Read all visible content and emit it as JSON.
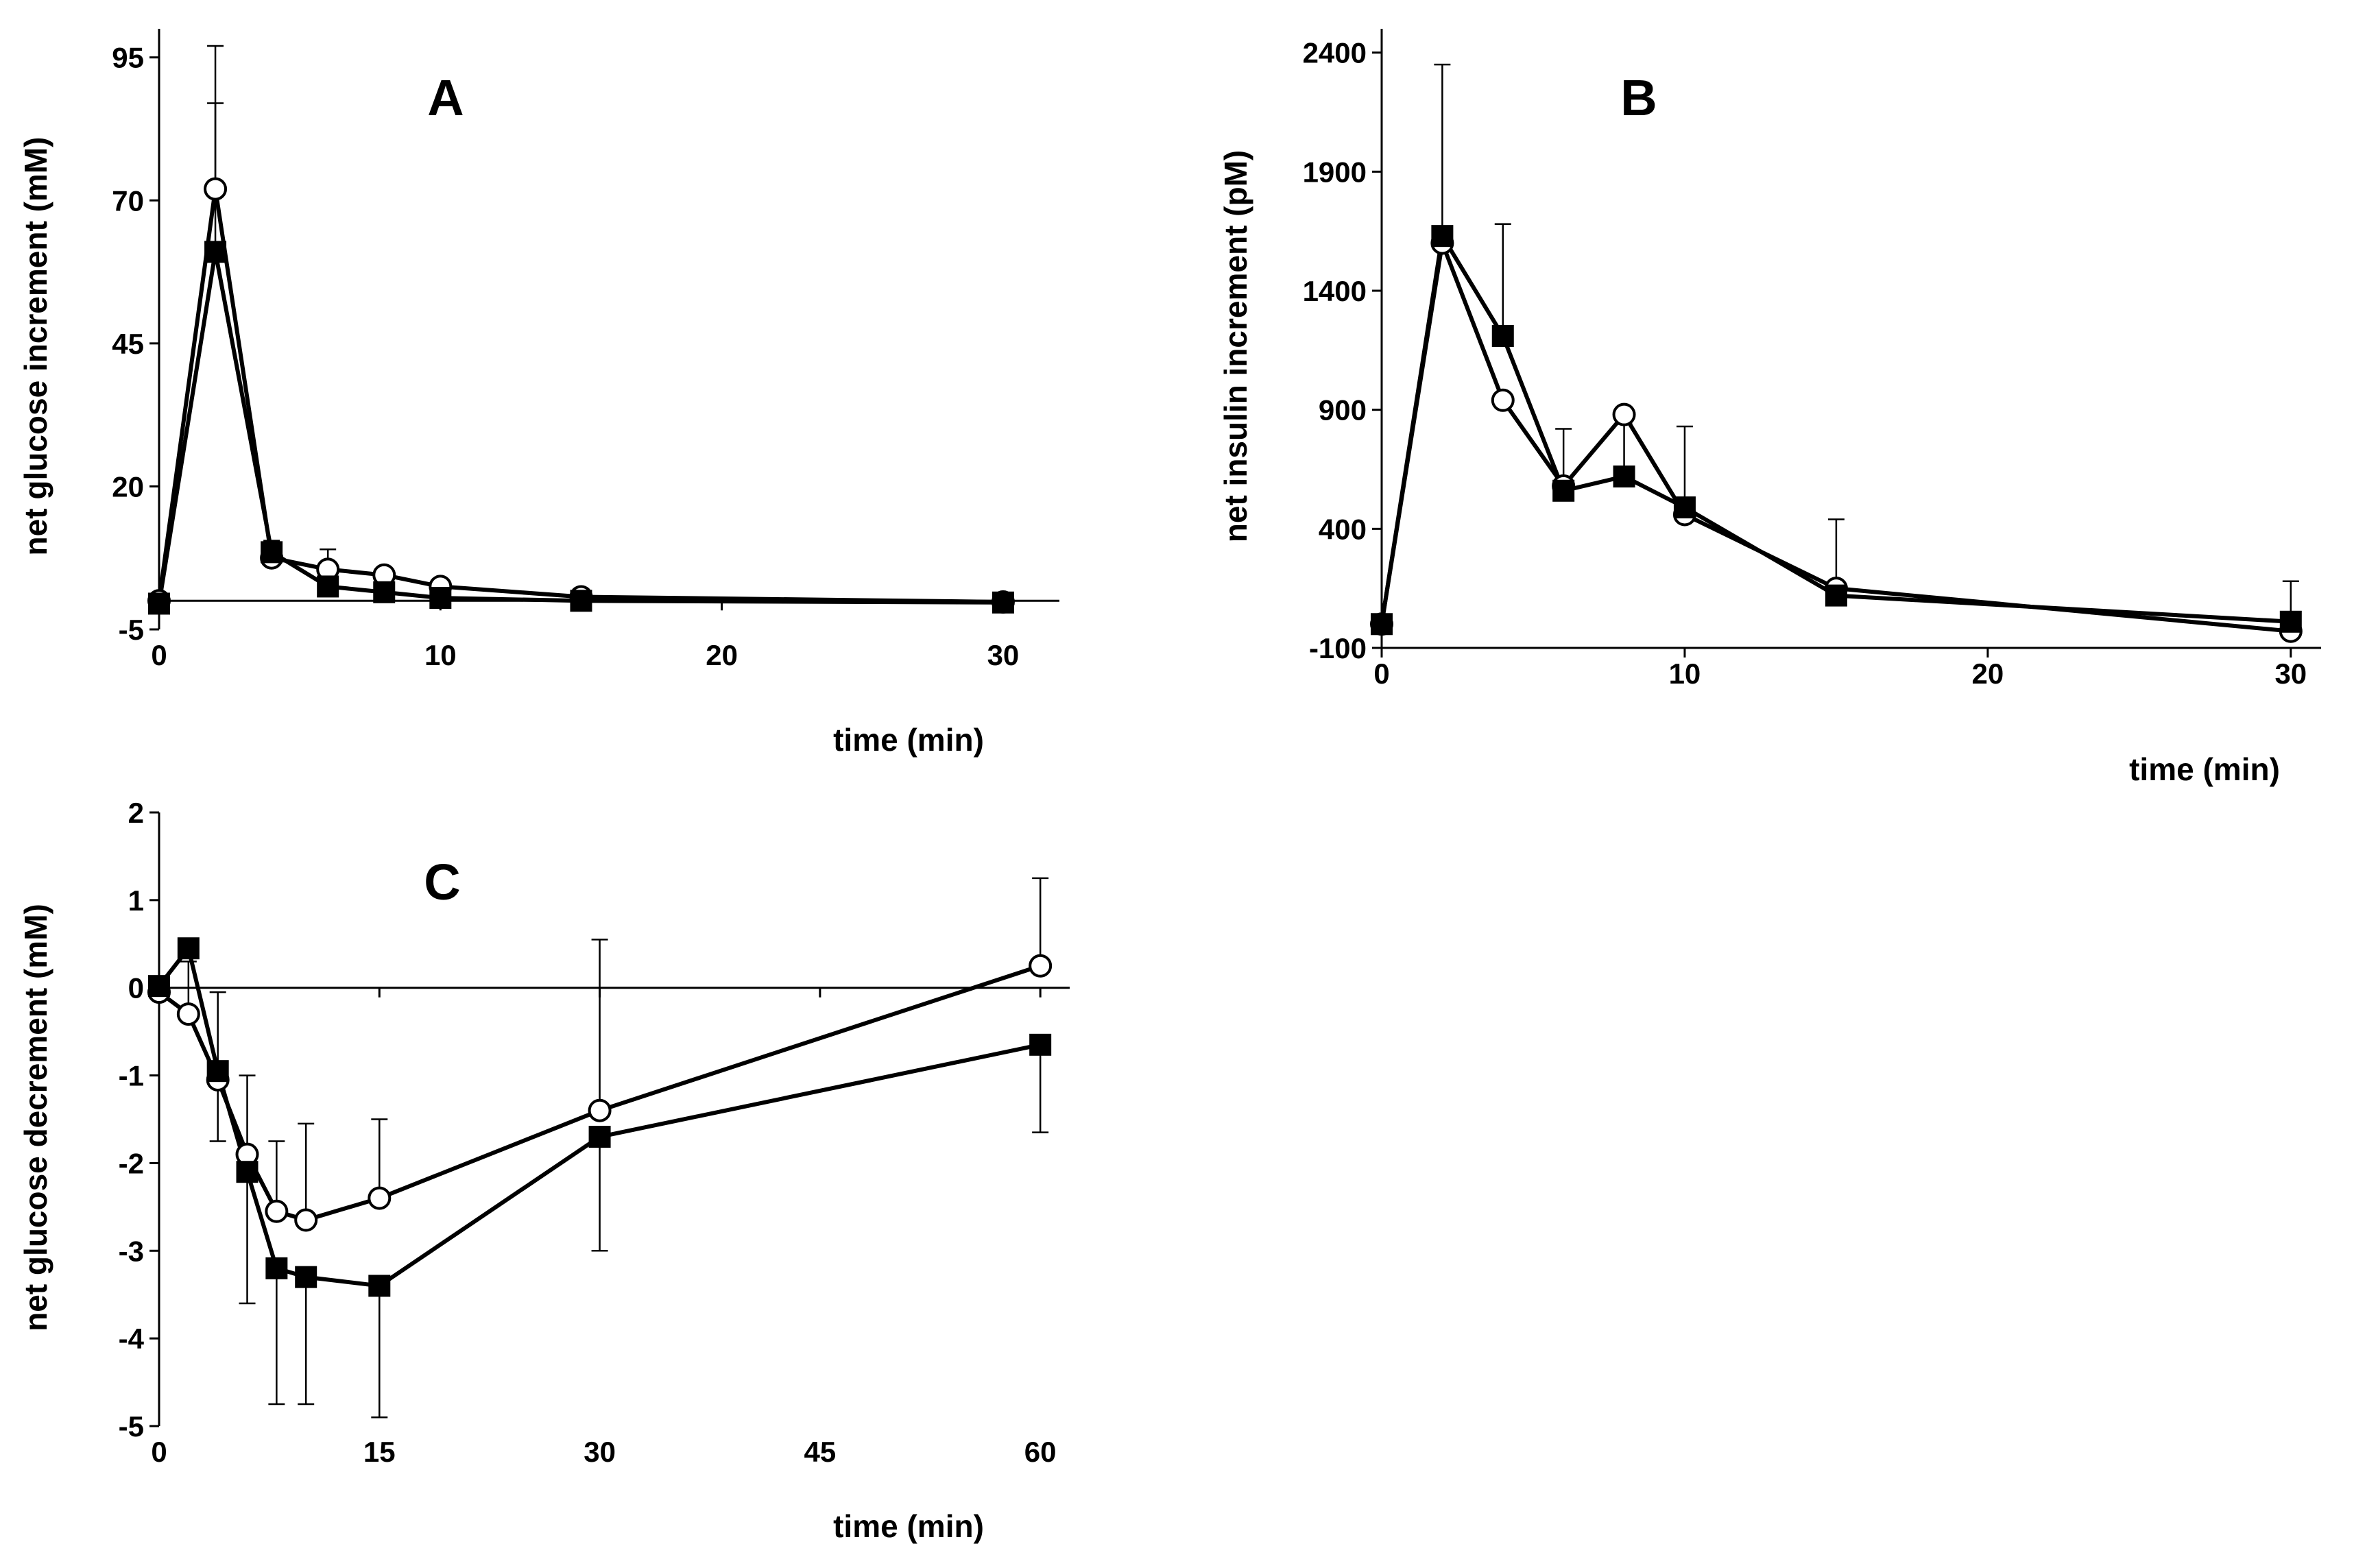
{
  "chart_data": [
    {
      "panel": "A",
      "type": "line",
      "title": "A",
      "xlabel": "time (min)",
      "ylabel": "net glucose increment (mM)",
      "xlim": [
        0,
        32
      ],
      "ylim": [
        -5,
        100
      ],
      "xticks": [
        0,
        10,
        20,
        30
      ],
      "yticks": [
        -5,
        20,
        45,
        70,
        95
      ],
      "series": [
        {
          "name": "open circles",
          "marker": "circle",
          "x": [
            0,
            2,
            4,
            6,
            8,
            10,
            15,
            30
          ],
          "y": [
            0,
            72,
            7.5,
            5.5,
            4.5,
            2.5,
            0.7,
            -0.2
          ],
          "err": [
            0,
            25,
            0,
            3.5,
            0,
            0,
            0,
            0
          ]
        },
        {
          "name": "filled squares",
          "marker": "square",
          "x": [
            0,
            2,
            4,
            6,
            8,
            10,
            15,
            30
          ],
          "y": [
            -0.5,
            61,
            8.5,
            2.5,
            1.5,
            0.5,
            0,
            -0.3
          ],
          "err": [
            0,
            26,
            2,
            3.5,
            0,
            0,
            0,
            0
          ]
        }
      ]
    },
    {
      "panel": "B",
      "type": "line",
      "title": "B",
      "xlabel": "time (min)",
      "ylabel": "net insulin increment (pM)",
      "xlim": [
        0,
        31
      ],
      "ylim": [
        -100,
        2500
      ],
      "xticks": [
        0,
        10,
        20,
        30
      ],
      "yticks": [
        -100,
        400,
        900,
        1400,
        1900,
        2400
      ],
      "series": [
        {
          "name": "open circles",
          "marker": "circle",
          "x": [
            0,
            2,
            4,
            6,
            8,
            10,
            15,
            30
          ],
          "y": [
            0,
            1600,
            940,
            580,
            880,
            460,
            150,
            -30
          ],
          "err": [
            0,
            0,
            0,
            0,
            0,
            0,
            0,
            0
          ]
        },
        {
          "name": "filled squares",
          "marker": "square",
          "x": [
            0,
            2,
            4,
            6,
            8,
            10,
            15,
            30
          ],
          "y": [
            0,
            1630,
            1210,
            560,
            620,
            490,
            120,
            10
          ],
          "err": [
            0,
            720,
            470,
            260,
            220,
            340,
            320,
            170
          ]
        }
      ]
    },
    {
      "panel": "C",
      "type": "line",
      "title": "C",
      "xlabel": "time (min)",
      "ylabel": "net glucose decrement (mM)",
      "xlim": [
        0,
        62
      ],
      "ylim": [
        -5,
        2
      ],
      "xticks": [
        0,
        15,
        30,
        45,
        60
      ],
      "yticks": [
        -5,
        -4,
        -3,
        -2,
        -1,
        0,
        1,
        2
      ],
      "series": [
        {
          "name": "open circles",
          "marker": "circle",
          "x": [
            0,
            2,
            4,
            6,
            8,
            10,
            15,
            30,
            60
          ],
          "y": [
            -0.05,
            -0.3,
            -1.05,
            -1.9,
            -2.55,
            -2.65,
            -2.4,
            -1.4,
            0.25
          ],
          "err": [
            0,
            0.6,
            1,
            0.9,
            0.8,
            1.1,
            0.9,
            1.95,
            1
          ]
        },
        {
          "name": "filled squares",
          "marker": "square",
          "x": [
            0,
            2,
            4,
            6,
            8,
            10,
            15,
            30,
            60
          ],
          "y": [
            0.02,
            0.45,
            -0.95,
            -2.1,
            -3.2,
            -3.3,
            -3.4,
            -1.7,
            -0.65
          ],
          "err": [
            0,
            0,
            0.8,
            1.5,
            1.55,
            1.45,
            1.5,
            1.3,
            1
          ]
        }
      ]
    }
  ]
}
